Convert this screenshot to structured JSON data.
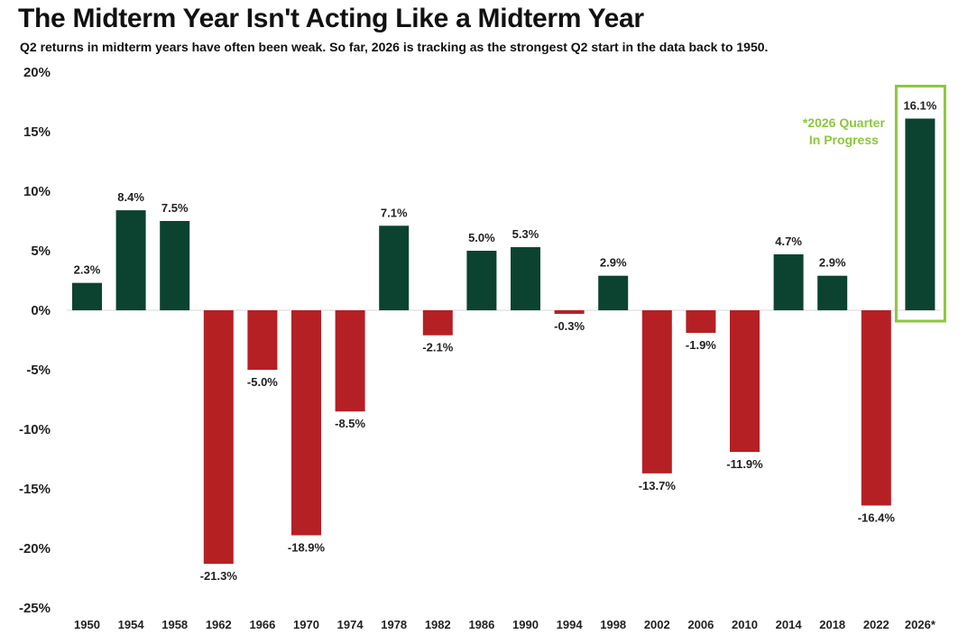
{
  "header": {
    "title": "The Midterm Year Isn't Acting Like a Midterm Year",
    "subtitle": "Q2 returns in midterm years have often been weak. So far, 2026 is tracking as the strongest Q2 start in the data back to 1950."
  },
  "colors": {
    "positive": "#0b4330",
    "negative": "#b52024",
    "highlight": "#8cc63f",
    "gridline": "#d9d9d9"
  },
  "chart_data": {
    "type": "bar",
    "categories": [
      "1950",
      "1954",
      "1958",
      "1962",
      "1966",
      "1970",
      "1974",
      "1978",
      "1982",
      "1986",
      "1990",
      "1994",
      "1998",
      "2002",
      "2006",
      "2010",
      "2014",
      "2018",
      "2022",
      "2026*"
    ],
    "values": [
      2.3,
      8.4,
      7.5,
      -21.3,
      -5.0,
      -18.9,
      -8.5,
      7.1,
      -2.1,
      5.0,
      5.3,
      -0.3,
      2.9,
      -13.7,
      -1.9,
      -11.9,
      4.7,
      2.9,
      -16.4,
      16.1
    ],
    "data_labels": [
      "2.3%",
      "8.4%",
      "7.5%",
      "-21.3%",
      "-5.0%",
      "-18.9%",
      "-8.5%",
      "7.1%",
      "-2.1%",
      "5.0%",
      "5.3%",
      "-0.3%",
      "2.9%",
      "-13.7%",
      "-1.9%",
      "-11.9%",
      "4.7%",
      "2.9%",
      "-16.4%",
      "16.1%"
    ],
    "yticks": [
      20,
      15,
      10,
      5,
      0,
      -5,
      -10,
      -15,
      -20,
      -25
    ],
    "ytick_labels": [
      "20%",
      "15%",
      "10%",
      "5%",
      "0%",
      "-5%",
      "-10%",
      "-15%",
      "-20%",
      "-25%"
    ],
    "ylim": [
      -25,
      20
    ],
    "xlabel": "",
    "ylabel": "",
    "grid": false,
    "highlight_category": "2026*",
    "annotation": {
      "lines": [
        "*2026 Quarter",
        "In Progress"
      ]
    }
  }
}
